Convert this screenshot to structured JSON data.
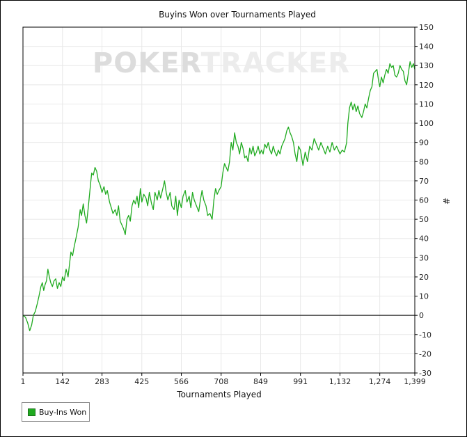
{
  "colors": {
    "series": "#1faa1f",
    "grid": "#e8e8e8",
    "zero_line": "#000000",
    "watermark_strong": "#dcdcdc",
    "watermark_light": "#ececec"
  },
  "watermark": {
    "strong": "POKER",
    "light": "TRACKER"
  },
  "chart_data": {
    "type": "line",
    "title": "Buyins Won over Tournaments Played",
    "xlabel": "Tournaments Played",
    "ylabel": "#",
    "xlim": [
      1,
      1399
    ],
    "ylim": [
      -30,
      150
    ],
    "x_ticks": [
      1,
      142,
      283,
      425,
      566,
      708,
      849,
      991,
      1132,
      1274,
      1399
    ],
    "x_tick_labels": [
      "1",
      "142",
      "283",
      "425",
      "566",
      "708",
      "849",
      "991",
      "1,132",
      "1,274",
      "1,399"
    ],
    "y_ticks": [
      150,
      140,
      130,
      120,
      110,
      100,
      90,
      80,
      70,
      60,
      50,
      40,
      30,
      20,
      10,
      0,
      -10,
      -20,
      -30
    ],
    "grid": true,
    "legend_position": "bottom-left",
    "series": [
      {
        "name": "Buy-Ins Won",
        "points": [
          [
            1,
            0
          ],
          [
            10,
            -1
          ],
          [
            18,
            -4
          ],
          [
            25,
            -8
          ],
          [
            32,
            -5
          ],
          [
            38,
            0
          ],
          [
            45,
            2
          ],
          [
            52,
            6
          ],
          [
            58,
            10
          ],
          [
            65,
            15
          ],
          [
            70,
            17
          ],
          [
            75,
            13
          ],
          [
            80,
            16
          ],
          [
            85,
            18
          ],
          [
            90,
            24
          ],
          [
            95,
            20
          ],
          [
            100,
            17
          ],
          [
            106,
            15
          ],
          [
            112,
            18
          ],
          [
            118,
            19
          ],
          [
            124,
            14
          ],
          [
            130,
            17
          ],
          [
            136,
            15
          ],
          [
            142,
            20
          ],
          [
            148,
            18
          ],
          [
            155,
            24
          ],
          [
            162,
            20
          ],
          [
            168,
            28
          ],
          [
            172,
            33
          ],
          [
            178,
            31
          ],
          [
            184,
            36
          ],
          [
            190,
            40
          ],
          [
            198,
            46
          ],
          [
            205,
            55
          ],
          [
            210,
            52
          ],
          [
            216,
            58
          ],
          [
            222,
            52
          ],
          [
            228,
            48
          ],
          [
            234,
            56
          ],
          [
            240,
            65
          ],
          [
            246,
            74
          ],
          [
            252,
            73
          ],
          [
            258,
            77
          ],
          [
            264,
            75
          ],
          [
            270,
            70
          ],
          [
            276,
            68
          ],
          [
            283,
            64
          ],
          [
            290,
            67
          ],
          [
            296,
            63
          ],
          [
            302,
            65
          ],
          [
            310,
            59
          ],
          [
            316,
            56
          ],
          [
            322,
            53
          ],
          [
            330,
            55
          ],
          [
            336,
            52
          ],
          [
            342,
            57
          ],
          [
            348,
            49
          ],
          [
            354,
            47
          ],
          [
            360,
            45
          ],
          [
            366,
            42
          ],
          [
            372,
            50
          ],
          [
            378,
            52
          ],
          [
            384,
            49
          ],
          [
            390,
            57
          ],
          [
            396,
            60
          ],
          [
            402,
            58
          ],
          [
            408,
            62
          ],
          [
            414,
            56
          ],
          [
            420,
            66
          ],
          [
            425,
            59
          ],
          [
            432,
            63
          ],
          [
            440,
            61
          ],
          [
            446,
            57
          ],
          [
            452,
            64
          ],
          [
            460,
            58
          ],
          [
            466,
            55
          ],
          [
            472,
            64
          ],
          [
            480,
            60
          ],
          [
            486,
            65
          ],
          [
            492,
            61
          ],
          [
            500,
            66
          ],
          [
            506,
            70
          ],
          [
            512,
            64
          ],
          [
            518,
            60
          ],
          [
            526,
            64
          ],
          [
            532,
            57
          ],
          [
            540,
            55
          ],
          [
            546,
            62
          ],
          [
            552,
            52
          ],
          [
            558,
            60
          ],
          [
            566,
            56
          ],
          [
            572,
            62
          ],
          [
            580,
            65
          ],
          [
            586,
            59
          ],
          [
            594,
            62
          ],
          [
            600,
            56
          ],
          [
            606,
            64
          ],
          [
            612,
            60
          ],
          [
            620,
            57
          ],
          [
            628,
            54
          ],
          [
            634,
            60
          ],
          [
            640,
            65
          ],
          [
            646,
            60
          ],
          [
            654,
            57
          ],
          [
            660,
            52
          ],
          [
            668,
            53
          ],
          [
            676,
            50
          ],
          [
            682,
            60
          ],
          [
            688,
            66
          ],
          [
            694,
            63
          ],
          [
            700,
            65
          ],
          [
            708,
            67
          ],
          [
            714,
            74
          ],
          [
            720,
            79
          ],
          [
            726,
            77
          ],
          [
            732,
            75
          ],
          [
            738,
            80
          ],
          [
            744,
            90
          ],
          [
            750,
            86
          ],
          [
            756,
            95
          ],
          [
            762,
            90
          ],
          [
            768,
            88
          ],
          [
            774,
            84
          ],
          [
            780,
            90
          ],
          [
            786,
            87
          ],
          [
            792,
            82
          ],
          [
            798,
            83
          ],
          [
            804,
            80
          ],
          [
            810,
            87
          ],
          [
            816,
            84
          ],
          [
            822,
            88
          ],
          [
            828,
            83
          ],
          [
            834,
            85
          ],
          [
            840,
            88
          ],
          [
            846,
            84
          ],
          [
            852,
            86
          ],
          [
            858,
            84
          ],
          [
            864,
            89
          ],
          [
            870,
            87
          ],
          [
            876,
            90
          ],
          [
            882,
            86
          ],
          [
            888,
            84
          ],
          [
            894,
            88
          ],
          [
            900,
            85
          ],
          [
            906,
            83
          ],
          [
            912,
            86
          ],
          [
            918,
            84
          ],
          [
            924,
            88
          ],
          [
            930,
            90
          ],
          [
            936,
            92
          ],
          [
            942,
            96
          ],
          [
            948,
            98
          ],
          [
            954,
            95
          ],
          [
            960,
            93
          ],
          [
            966,
            90
          ],
          [
            972,
            84
          ],
          [
            978,
            80
          ],
          [
            984,
            88
          ],
          [
            991,
            86
          ],
          [
            1000,
            78
          ],
          [
            1008,
            85
          ],
          [
            1016,
            80
          ],
          [
            1024,
            88
          ],
          [
            1032,
            86
          ],
          [
            1040,
            92
          ],
          [
            1048,
            89
          ],
          [
            1056,
            86
          ],
          [
            1064,
            90
          ],
          [
            1072,
            87
          ],
          [
            1080,
            84
          ],
          [
            1088,
            88
          ],
          [
            1096,
            85
          ],
          [
            1104,
            90
          ],
          [
            1112,
            86
          ],
          [
            1120,
            88
          ],
          [
            1132,
            84
          ],
          [
            1140,
            86
          ],
          [
            1148,
            85
          ],
          [
            1156,
            90
          ],
          [
            1160,
            100
          ],
          [
            1166,
            108
          ],
          [
            1172,
            111
          ],
          [
            1178,
            107
          ],
          [
            1184,
            110
          ],
          [
            1190,
            106
          ],
          [
            1196,
            109
          ],
          [
            1202,
            105
          ],
          [
            1210,
            103
          ],
          [
            1216,
            106
          ],
          [
            1222,
            110
          ],
          [
            1228,
            108
          ],
          [
            1234,
            113
          ],
          [
            1240,
            117
          ],
          [
            1246,
            119
          ],
          [
            1252,
            126
          ],
          [
            1258,
            127
          ],
          [
            1264,
            128
          ],
          [
            1270,
            122
          ],
          [
            1274,
            119
          ],
          [
            1280,
            124
          ],
          [
            1286,
            121
          ],
          [
            1292,
            125
          ],
          [
            1298,
            128
          ],
          [
            1304,
            126
          ],
          [
            1310,
            131
          ],
          [
            1316,
            129
          ],
          [
            1322,
            130
          ],
          [
            1328,
            125
          ],
          [
            1334,
            124
          ],
          [
            1340,
            126
          ],
          [
            1346,
            130
          ],
          [
            1352,
            128
          ],
          [
            1358,
            127
          ],
          [
            1364,
            122
          ],
          [
            1370,
            120
          ],
          [
            1376,
            126
          ],
          [
            1382,
            132
          ],
          [
            1388,
            129
          ],
          [
            1394,
            131
          ],
          [
            1399,
            128
          ]
        ]
      }
    ]
  }
}
